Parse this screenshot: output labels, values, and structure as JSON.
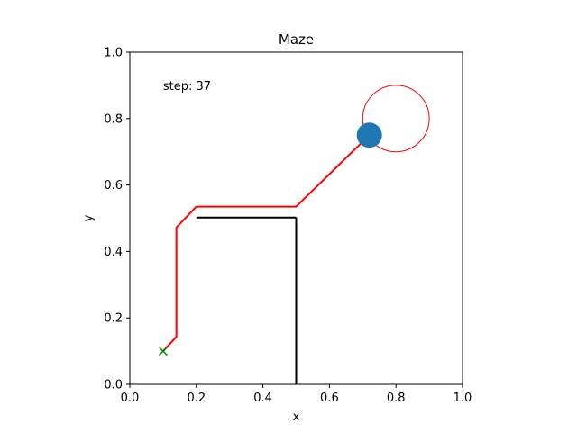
{
  "chart_data": {
    "type": "line",
    "title": "Maze",
    "xlabel": "x",
    "ylabel": "y",
    "xlim": [
      0.0,
      1.0
    ],
    "ylim": [
      0.0,
      1.0
    ],
    "xticks": [
      0.0,
      0.2,
      0.4,
      0.6,
      0.8,
      1.0
    ],
    "yticks": [
      0.0,
      0.2,
      0.4,
      0.6,
      0.8,
      1.0
    ],
    "xtick_labels": [
      "0.0",
      "0.2",
      "0.4",
      "0.6",
      "0.8",
      "1.0"
    ],
    "ytick_labels": [
      "0.0",
      "0.2",
      "0.4",
      "0.6",
      "0.8",
      "1.0"
    ],
    "grid": false,
    "annotation": {
      "text": "step: 37",
      "x": 0.1,
      "y": 0.9
    },
    "walls": [
      {
        "x": [
          0.2,
          0.5
        ],
        "y": [
          0.502,
          0.502
        ]
      },
      {
        "x": [
          0.5,
          0.5
        ],
        "y": [
          0.502,
          0.0
        ]
      }
    ],
    "path": {
      "x": [
        0.1,
        0.14,
        0.14,
        0.2,
        0.5,
        0.72
      ],
      "y": [
        0.1,
        0.143,
        0.472,
        0.535,
        0.535,
        0.75
      ]
    },
    "start": {
      "x": 0.1,
      "y": 0.1
    },
    "agent": {
      "x": 0.72,
      "y": 0.75
    },
    "goal": {
      "x": 0.8,
      "y": 0.8,
      "r": 0.1
    },
    "colors": {
      "path": "#ff0000",
      "goal": "#ff0000",
      "wall": "#000000",
      "agent": "#1f77b4",
      "start": "#008000"
    }
  }
}
